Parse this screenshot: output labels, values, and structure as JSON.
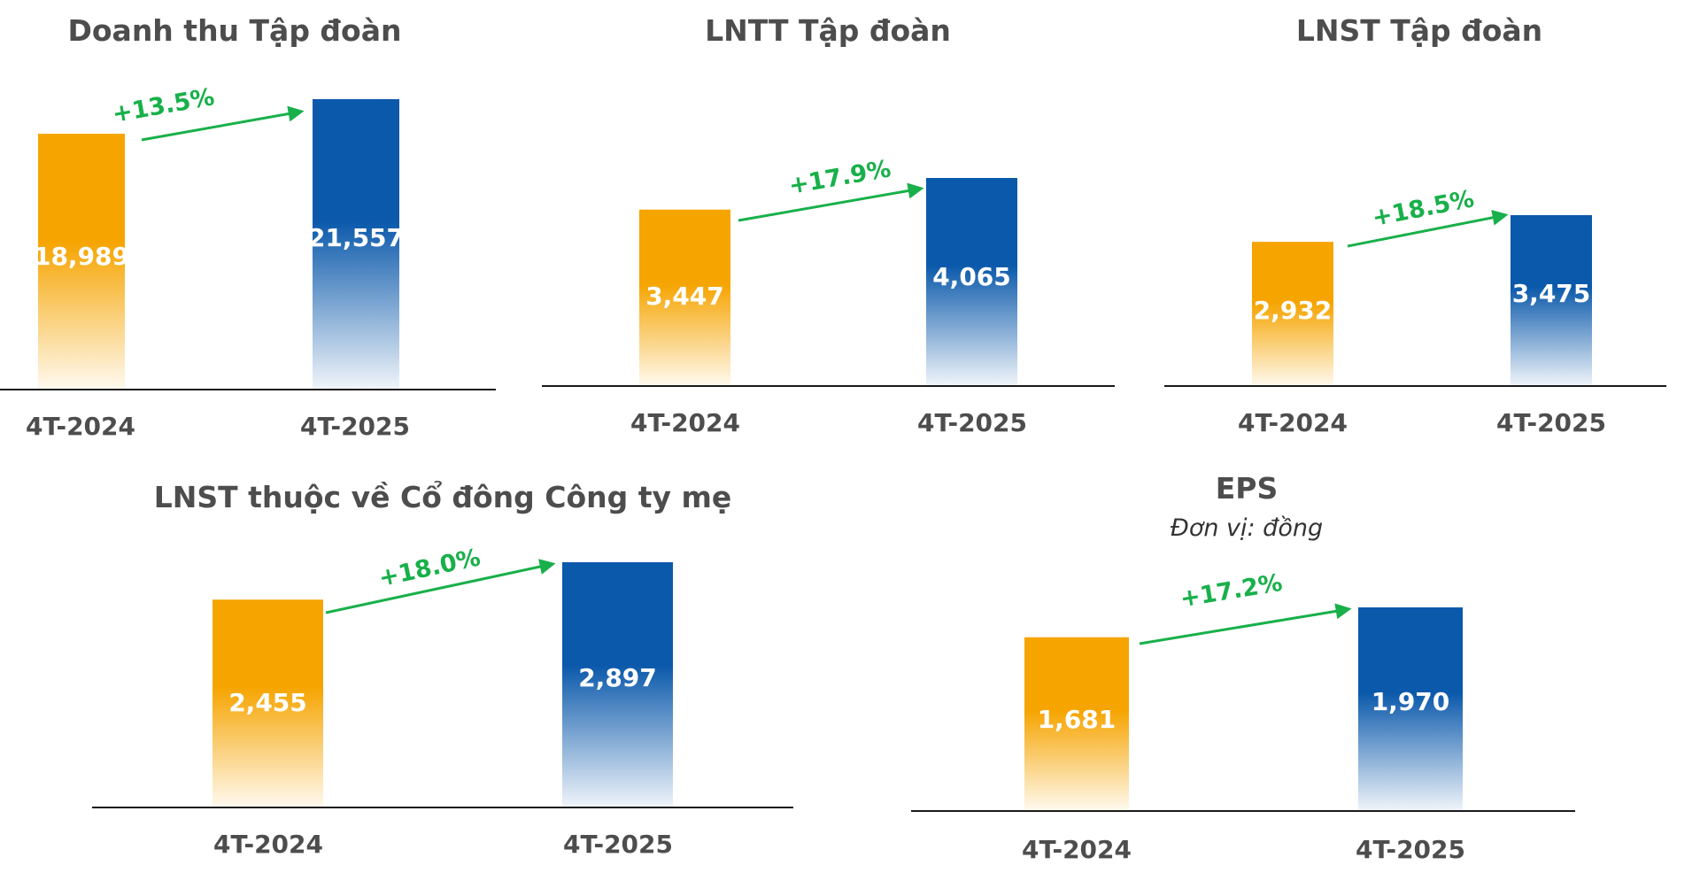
{
  "colors": {
    "bar_2024": "#f6a400",
    "bar_2025": "#0b59ab",
    "growth": "#18b04a",
    "axis": "#1a1a1a",
    "title": "#4d4d4d"
  },
  "chart_data": [
    {
      "type": "bar",
      "title": "Doanh thu Tập đoàn",
      "categories": [
        "4T-2024",
        "4T-2025"
      ],
      "values": [
        18989,
        21557
      ],
      "value_labels": [
        "18,989",
        "21,557"
      ],
      "growth_label": "+13.5%"
    },
    {
      "type": "bar",
      "title": "LNTT Tập đoàn",
      "categories": [
        "4T-2024",
        "4T-2025"
      ],
      "values": [
        3447,
        4065
      ],
      "value_labels": [
        "3,447",
        "4,065"
      ],
      "growth_label": "+17.9%"
    },
    {
      "type": "bar",
      "title": "LNST Tập đoàn",
      "categories": [
        "4T-2024",
        "4T-2025"
      ],
      "values": [
        2932,
        3475
      ],
      "value_labels": [
        "2,932",
        "3,475"
      ],
      "growth_label": "+18.5%"
    },
    {
      "type": "bar",
      "title": "LNST thuộc về Cổ đông Công ty mẹ",
      "categories": [
        "4T-2024",
        "4T-2025"
      ],
      "values": [
        2455,
        2897
      ],
      "value_labels": [
        "2,455",
        "2,897"
      ],
      "growth_label": "+18.0%"
    },
    {
      "type": "bar",
      "title": "EPS",
      "subtitle": "Đơn vị: đồng",
      "categories": [
        "4T-2024",
        "4T-2025"
      ],
      "values": [
        1681,
        1970
      ],
      "value_labels": [
        "1,681",
        "1,970"
      ],
      "growth_label": "+17.2%"
    }
  ]
}
